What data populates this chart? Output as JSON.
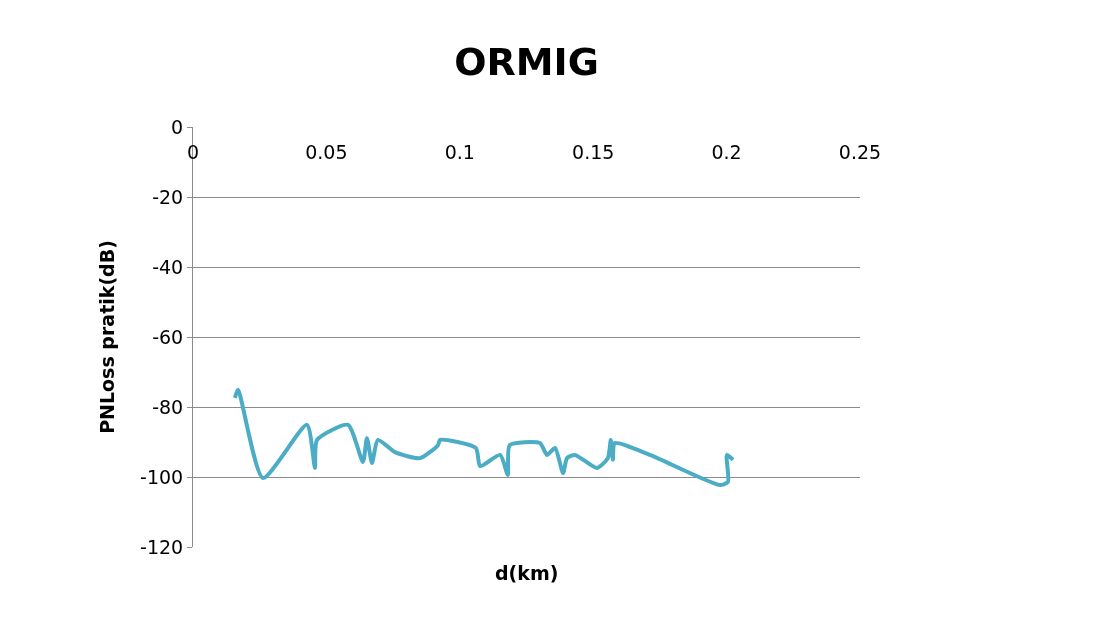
{
  "chart_data": {
    "type": "line",
    "title": "ORMIG",
    "xlabel": "d(km)",
    "ylabel": "PNLoss pratik(dB)",
    "series": [
      {
        "color": "#4bacc6",
        "x": [
          0.0157,
          0.0169,
          0.0262,
          0.0427,
          0.0457,
          0.0465,
          0.0581,
          0.0637,
          0.0652,
          0.0671,
          0.0693,
          0.0757,
          0.0851,
          0.0918,
          0.0926,
          0.106,
          0.1076,
          0.1151,
          0.118,
          0.1187,
          0.13,
          0.1327,
          0.1357,
          0.1387,
          0.1402,
          0.1432,
          0.1514,
          0.1555,
          0.1566,
          0.1574,
          0.1581,
          0.1713,
          0.1975,
          0.2005,
          0.2001,
          0.2024
        ],
        "values": [
          -77.4,
          -75.1,
          -100.3,
          -85.1,
          -97.4,
          -89.4,
          -85.1,
          -95.7,
          -88.9,
          -96,
          -89.4,
          -92.9,
          -94.6,
          -90.9,
          -89.4,
          -91.7,
          -96.9,
          -93.7,
          -99.4,
          -90.9,
          -90.3,
          -93.7,
          -91.7,
          -98.9,
          -94.6,
          -93.7,
          -97.4,
          -94.6,
          -89.4,
          -95.1,
          -90.3,
          -93.7,
          -102.3,
          -101.4,
          -93.7,
          -95.1
        ]
      }
    ],
    "xlim": [
      0,
      0.25
    ],
    "xticks": [
      0,
      0.05,
      0.1,
      0.15,
      0.2,
      0.25
    ],
    "ylim": [
      -120,
      0
    ],
    "yticks": [
      -120,
      -100,
      -80,
      -60,
      -40,
      -20,
      0
    ],
    "grid": "y",
    "marker": "none",
    "line_style": "solid"
  }
}
